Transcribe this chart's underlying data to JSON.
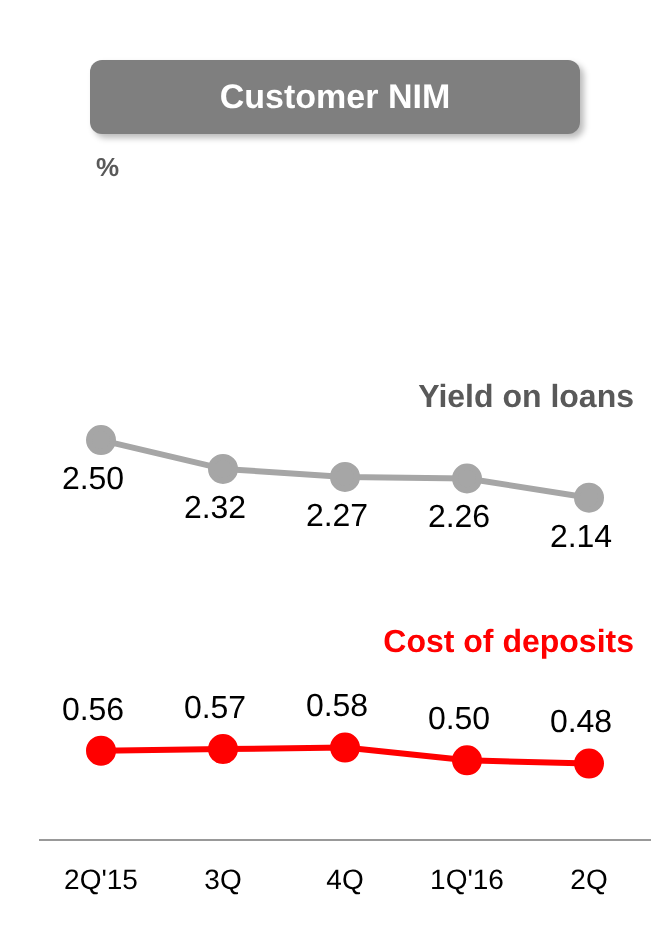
{
  "chart_data": {
    "type": "line",
    "title": "Customer NIM",
    "annotations": [
      "%"
    ],
    "categories": [
      "2Q'15",
      "3Q",
      "4Q",
      "1Q'16",
      "2Q"
    ],
    "series": [
      {
        "name": "Yield on loans",
        "color": "#a6a6a6",
        "values": [
          2.5,
          2.32,
          2.27,
          2.26,
          2.14
        ],
        "value_labels": [
          "2.50",
          "2.32",
          "2.27",
          "2.26",
          "2.14"
        ]
      },
      {
        "name": "Cost of deposits",
        "color": "#ff0000",
        "values": [
          0.56,
          0.57,
          0.58,
          0.5,
          0.48
        ],
        "value_labels": [
          "0.56",
          "0.57",
          "0.58",
          "0.50",
          "0.48"
        ]
      }
    ],
    "tick_labels": "x",
    "grid": false,
    "legend": false,
    "marker": "circle",
    "line_style": "solid"
  }
}
